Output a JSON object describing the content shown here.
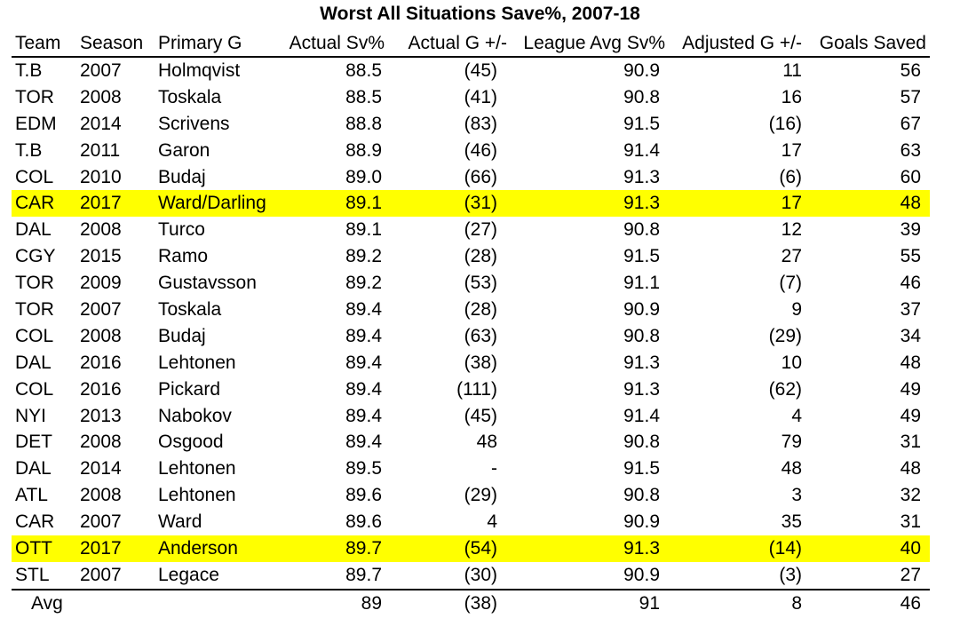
{
  "title": "Worst All Situations Save%, 2007-18",
  "headers": {
    "team": "Team",
    "season": "Season",
    "goalie": "Primary G",
    "actual_sv": "Actual Sv%",
    "actual_gpm": "Actual G +/-",
    "league_sv": "League Avg Sv%",
    "adjusted_gpm": "Adjusted G +/-",
    "goals_saved": "Goals Saved"
  },
  "highlight_color": "#ffff00",
  "rows": [
    {
      "team": "T.B",
      "season": "2007",
      "goalie": "Holmqvist",
      "actual_sv": "88.5",
      "actual_gpm": "(45)",
      "league_sv": "90.9",
      "adjusted_gpm": "11",
      "goals_saved": "56",
      "highlight": false
    },
    {
      "team": "TOR",
      "season": "2008",
      "goalie": "Toskala",
      "actual_sv": "88.5",
      "actual_gpm": "(41)",
      "league_sv": "90.8",
      "adjusted_gpm": "16",
      "goals_saved": "57",
      "highlight": false
    },
    {
      "team": "EDM",
      "season": "2014",
      "goalie": "Scrivens",
      "actual_sv": "88.8",
      "actual_gpm": "(83)",
      "league_sv": "91.5",
      "adjusted_gpm": "(16)",
      "goals_saved": "67",
      "highlight": false
    },
    {
      "team": "T.B",
      "season": "2011",
      "goalie": "Garon",
      "actual_sv": "88.9",
      "actual_gpm": "(46)",
      "league_sv": "91.4",
      "adjusted_gpm": "17",
      "goals_saved": "63",
      "highlight": false
    },
    {
      "team": "COL",
      "season": "2010",
      "goalie": "Budaj",
      "actual_sv": "89.0",
      "actual_gpm": "(66)",
      "league_sv": "91.3",
      "adjusted_gpm": "(6)",
      "goals_saved": "60",
      "highlight": false
    },
    {
      "team": "CAR",
      "season": "2017",
      "goalie": "Ward/Darling",
      "actual_sv": "89.1",
      "actual_gpm": "(31)",
      "league_sv": "91.3",
      "adjusted_gpm": "17",
      "goals_saved": "48",
      "highlight": true
    },
    {
      "team": "DAL",
      "season": "2008",
      "goalie": "Turco",
      "actual_sv": "89.1",
      "actual_gpm": "(27)",
      "league_sv": "90.8",
      "adjusted_gpm": "12",
      "goals_saved": "39",
      "highlight": false
    },
    {
      "team": "CGY",
      "season": "2015",
      "goalie": "Ramo",
      "actual_sv": "89.2",
      "actual_gpm": "(28)",
      "league_sv": "91.5",
      "adjusted_gpm": "27",
      "goals_saved": "55",
      "highlight": false
    },
    {
      "team": "TOR",
      "season": "2009",
      "goalie": "Gustavsson",
      "actual_sv": "89.2",
      "actual_gpm": "(53)",
      "league_sv": "91.1",
      "adjusted_gpm": "(7)",
      "goals_saved": "46",
      "highlight": false
    },
    {
      "team": "TOR",
      "season": "2007",
      "goalie": "Toskala",
      "actual_sv": "89.4",
      "actual_gpm": "(28)",
      "league_sv": "90.9",
      "adjusted_gpm": "9",
      "goals_saved": "37",
      "highlight": false
    },
    {
      "team": "COL",
      "season": "2008",
      "goalie": "Budaj",
      "actual_sv": "89.4",
      "actual_gpm": "(63)",
      "league_sv": "90.8",
      "adjusted_gpm": "(29)",
      "goals_saved": "34",
      "highlight": false
    },
    {
      "team": "DAL",
      "season": "2016",
      "goalie": "Lehtonen",
      "actual_sv": "89.4",
      "actual_gpm": "(38)",
      "league_sv": "91.3",
      "adjusted_gpm": "10",
      "goals_saved": "48",
      "highlight": false
    },
    {
      "team": "COL",
      "season": "2016",
      "goalie": "Pickard",
      "actual_sv": "89.4",
      "actual_gpm": "(111)",
      "league_sv": "91.3",
      "adjusted_gpm": "(62)",
      "goals_saved": "49",
      "highlight": false
    },
    {
      "team": "NYI",
      "season": "2013",
      "goalie": "Nabokov",
      "actual_sv": "89.4",
      "actual_gpm": "(45)",
      "league_sv": "91.4",
      "adjusted_gpm": "4",
      "goals_saved": "49",
      "highlight": false
    },
    {
      "team": "DET",
      "season": "2008",
      "goalie": "Osgood",
      "actual_sv": "89.4",
      "actual_gpm": "48",
      "league_sv": "90.8",
      "adjusted_gpm": "79",
      "goals_saved": "31",
      "highlight": false
    },
    {
      "team": "DAL",
      "season": "2014",
      "goalie": "Lehtonen",
      "actual_sv": "89.5",
      "actual_gpm": "-",
      "league_sv": "91.5",
      "adjusted_gpm": "48",
      "goals_saved": "48",
      "highlight": false
    },
    {
      "team": "ATL",
      "season": "2008",
      "goalie": "Lehtonen",
      "actual_sv": "89.6",
      "actual_gpm": "(29)",
      "league_sv": "90.8",
      "adjusted_gpm": "3",
      "goals_saved": "32",
      "highlight": false
    },
    {
      "team": "CAR",
      "season": "2007",
      "goalie": "Ward",
      "actual_sv": "89.6",
      "actual_gpm": "4",
      "league_sv": "90.9",
      "adjusted_gpm": "35",
      "goals_saved": "31",
      "highlight": false
    },
    {
      "team": "OTT",
      "season": "2017",
      "goalie": "Anderson",
      "actual_sv": "89.7",
      "actual_gpm": "(54)",
      "league_sv": "91.3",
      "adjusted_gpm": "(14)",
      "goals_saved": "40",
      "highlight": true
    },
    {
      "team": "STL",
      "season": "2007",
      "goalie": "Legace",
      "actual_sv": "89.7",
      "actual_gpm": "(30)",
      "league_sv": "90.9",
      "adjusted_gpm": "(3)",
      "goals_saved": "27",
      "highlight": false
    }
  ],
  "average": {
    "label": "Avg",
    "actual_sv": "89",
    "actual_gpm": "(38)",
    "league_sv": "91",
    "adjusted_gpm": "8",
    "goals_saved": "46"
  }
}
